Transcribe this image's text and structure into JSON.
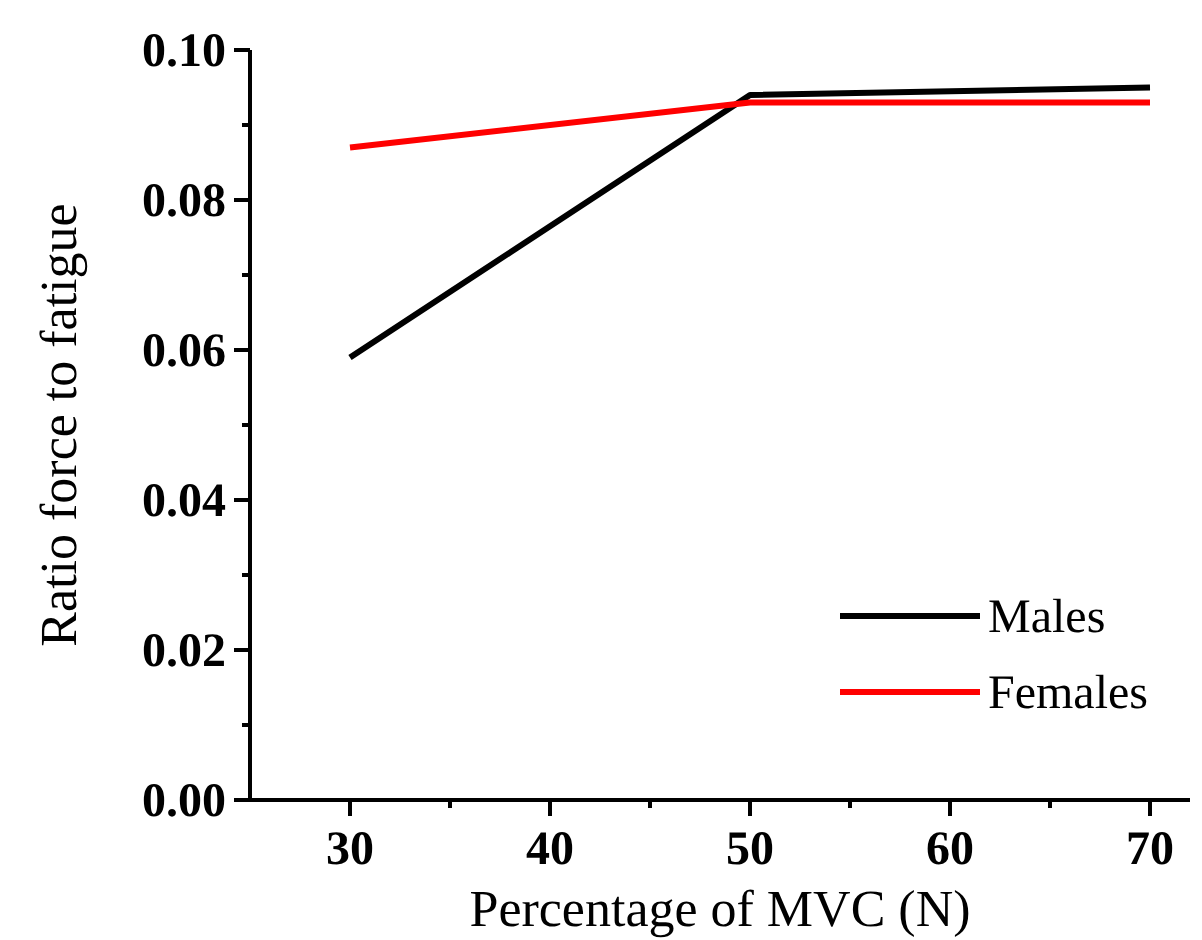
{
  "chart_data": {
    "type": "line",
    "xlabel": "Percentage of MVC (N)",
    "ylabel": "Ratio force to fatigue",
    "x": [
      30,
      50,
      70
    ],
    "series": [
      {
        "name": "Males",
        "color": "#000000",
        "values": [
          0.059,
          0.094,
          0.095
        ]
      },
      {
        "name": "Females",
        "color": "#ff0000",
        "values": [
          0.087,
          0.093,
          0.093
        ]
      }
    ],
    "xlim": [
      25,
      72
    ],
    "xticks": [
      30,
      {
        "value": 35,
        "label": null
      },
      40,
      {
        "value": 45,
        "label": null
      },
      50,
      {
        "value": 55,
        "label": null
      },
      60,
      {
        "value": 65,
        "label": null
      },
      70
    ],
    "ylim": [
      0,
      0.1
    ],
    "yticks": [
      {
        "value": 0,
        "label": "0.00"
      },
      {
        "value": 0.01,
        "label": null
      },
      {
        "value": 0.02,
        "label": "0.02"
      },
      {
        "value": 0.03,
        "label": null
      },
      {
        "value": 0.04,
        "label": "0.04"
      },
      {
        "value": 0.05,
        "label": null
      },
      {
        "value": 0.06,
        "label": "0.06"
      },
      {
        "value": 0.07,
        "label": null
      },
      {
        "value": 0.08,
        "label": "0.08"
      },
      {
        "value": 0.09,
        "label": null
      },
      {
        "value": 0.1,
        "label": "0.10"
      }
    ],
    "grid": false,
    "legend": "bottom right",
    "marker": "none",
    "line_style": "solid"
  }
}
